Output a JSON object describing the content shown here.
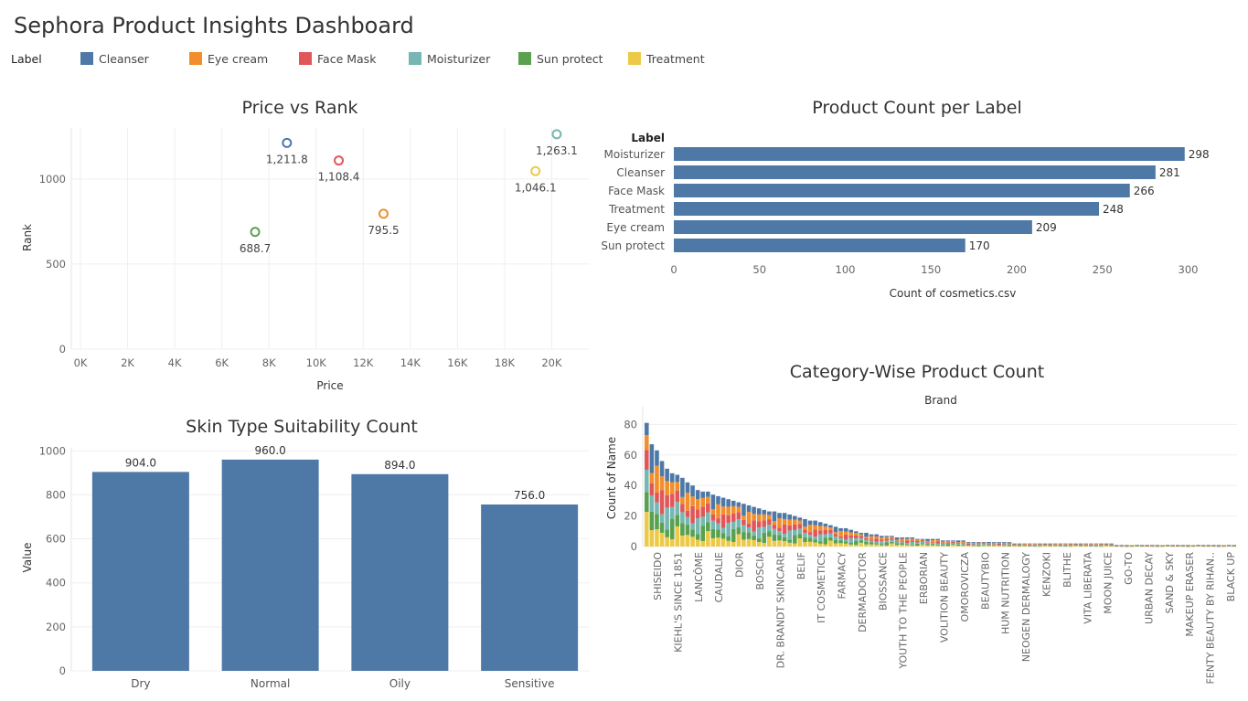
{
  "dashboard": {
    "title": "Sephora Product Insights Dashboard",
    "legend_title": "Label",
    "legend": [
      {
        "label": "Cleanser",
        "color": "#4e79a7"
      },
      {
        "label": "Eye cream",
        "color": "#f28e2b"
      },
      {
        "label": "Face Mask",
        "color": "#e15759"
      },
      {
        "label": "Moisturizer",
        "color": "#76b7b2"
      },
      {
        "label": "Sun protect",
        "color": "#59a14f"
      },
      {
        "label": "Treatment",
        "color": "#edc948"
      }
    ]
  },
  "chart_data": [
    {
      "id": "price-vs-rank",
      "type": "scatter",
      "title": "Price vs Rank",
      "xlabel": "Price",
      "ylabel": "Rank",
      "xlim": [
        0,
        22000
      ],
      "ylim": [
        0,
        1300
      ],
      "xticks": [
        "0K",
        "2K",
        "4K",
        "6K",
        "8K",
        "10K",
        "12K",
        "14K",
        "16K",
        "18K",
        "20K"
      ],
      "yticks": [
        "0",
        "500",
        "1000"
      ],
      "grid": true,
      "points": [
        {
          "label": "Cleanser",
          "x": 9150,
          "y": 1211.8,
          "text": "1,211.8",
          "color": "#4e79a7"
        },
        {
          "label": "Face Mask",
          "x": 11350,
          "y": 1108.4,
          "text": "1,108.4",
          "color": "#e15759"
        },
        {
          "label": "Sun protect",
          "x": 7800,
          "y": 688.7,
          "text": "688.7",
          "color": "#59a14f"
        },
        {
          "label": "Eye cream",
          "x": 13250,
          "y": 795.5,
          "text": "795.5",
          "color": "#f28e2b"
        },
        {
          "label": "Treatment",
          "x": 19700,
          "y": 1046.1,
          "text": "1,046.1",
          "color": "#edc948"
        },
        {
          "label": "Moisturizer",
          "x": 20600,
          "y": 1263.1,
          "text": "1,263.1",
          "color": "#76b7b2"
        }
      ]
    },
    {
      "id": "product-count-per-label",
      "type": "bar",
      "orientation": "horizontal",
      "title": "Product Count per Label",
      "ylabel": "Label",
      "xlabel": "Count of cosmetics.csv",
      "xlim": [
        0,
        320
      ],
      "xticks": [
        "0",
        "50",
        "100",
        "150",
        "200",
        "250",
        "300"
      ],
      "categories": [
        "Moisturizer",
        "Cleanser",
        "Face Mask",
        "Treatment",
        "Eye cream",
        "Sun protect"
      ],
      "values": [
        298,
        281,
        266,
        248,
        209,
        170
      ],
      "color": "#4e79a7"
    },
    {
      "id": "skin-type-suitability",
      "type": "bar",
      "title": "Skin Type Suitability Count",
      "xlabel": "",
      "ylabel": "Value",
      "ylim": [
        0,
        1080
      ],
      "yticks": [
        "0",
        "200",
        "400",
        "600",
        "800",
        "1000"
      ],
      "categories": [
        "Dry",
        "Normal",
        "Oily",
        "Sensitive"
      ],
      "values": [
        904.0,
        960.0,
        894.0,
        756.0
      ],
      "value_labels": [
        "904.0",
        "960.0",
        "894.0",
        "756.0"
      ],
      "color": "#4e79a7"
    },
    {
      "id": "category-wise-product-count",
      "type": "bar",
      "stacked": true,
      "title": "Category-Wise Product Count",
      "header": "Brand",
      "ylabel": "Count of Name",
      "ylim": [
        0,
        85
      ],
      "yticks": [
        "0",
        "20",
        "40",
        "60",
        "80"
      ],
      "series_colors": [
        "#edc948",
        "#59a14f",
        "#76b7b2",
        "#e15759",
        "#f28e2b",
        "#4e79a7"
      ],
      "x_tick_labels": [
        "SHISEIDO",
        "KIEHL'S SINCE 1851",
        "LANCÔME",
        "CAUDALIE",
        "DIOR",
        "BOSCIA",
        "DR. BRANDT SKINCARE",
        "BELIF",
        "IT COSMETICS",
        "FARMACY",
        "DERMADOCTOR",
        "BIOSSANCE",
        "YOUTH TO THE PEOPLE",
        "ERBORIAN",
        "VOLITION BEAUTY",
        "OMOROVICZA",
        "BEAUTYBIO",
        "HUM NUTRITION",
        "NEOGEN DERMALOGY",
        "KENZOKI",
        "BLITHE",
        "VITA LIBERATA",
        "MOON JUICE",
        "GO-TO",
        "URBAN DECAY",
        "SAND & SKY",
        "MAKEUP ERASER",
        "FENTY BEAUTY BY RIHAN..",
        "BLACK UP"
      ],
      "bar_totals": [
        81,
        67,
        63,
        56,
        51,
        48,
        47,
        45,
        42,
        40,
        37,
        36,
        36,
        34,
        33,
        32,
        31,
        30,
        29,
        28,
        27,
        26,
        25,
        24,
        23,
        23,
        22,
        22,
        21,
        20,
        19,
        18,
        17,
        17,
        16,
        15,
        14,
        13,
        12,
        12,
        11,
        10,
        9,
        9,
        8,
        8,
        7,
        7,
        7,
        6,
        6,
        6,
        6,
        5,
        5,
        5,
        5,
        5,
        4,
        4,
        4,
        4,
        4,
        3,
        3,
        3,
        3,
        3,
        3,
        3,
        3,
        3,
        2,
        2,
        2,
        2,
        2,
        2,
        2,
        2,
        2,
        2,
        2,
        2,
        2,
        2,
        2,
        2,
        2,
        2,
        2,
        2,
        1,
        1,
        1,
        1,
        1,
        1,
        1,
        1,
        1,
        1,
        1,
        1,
        1,
        1,
        1,
        1,
        1,
        1,
        1,
        1,
        1,
        1,
        1,
        1
      ]
    }
  ]
}
